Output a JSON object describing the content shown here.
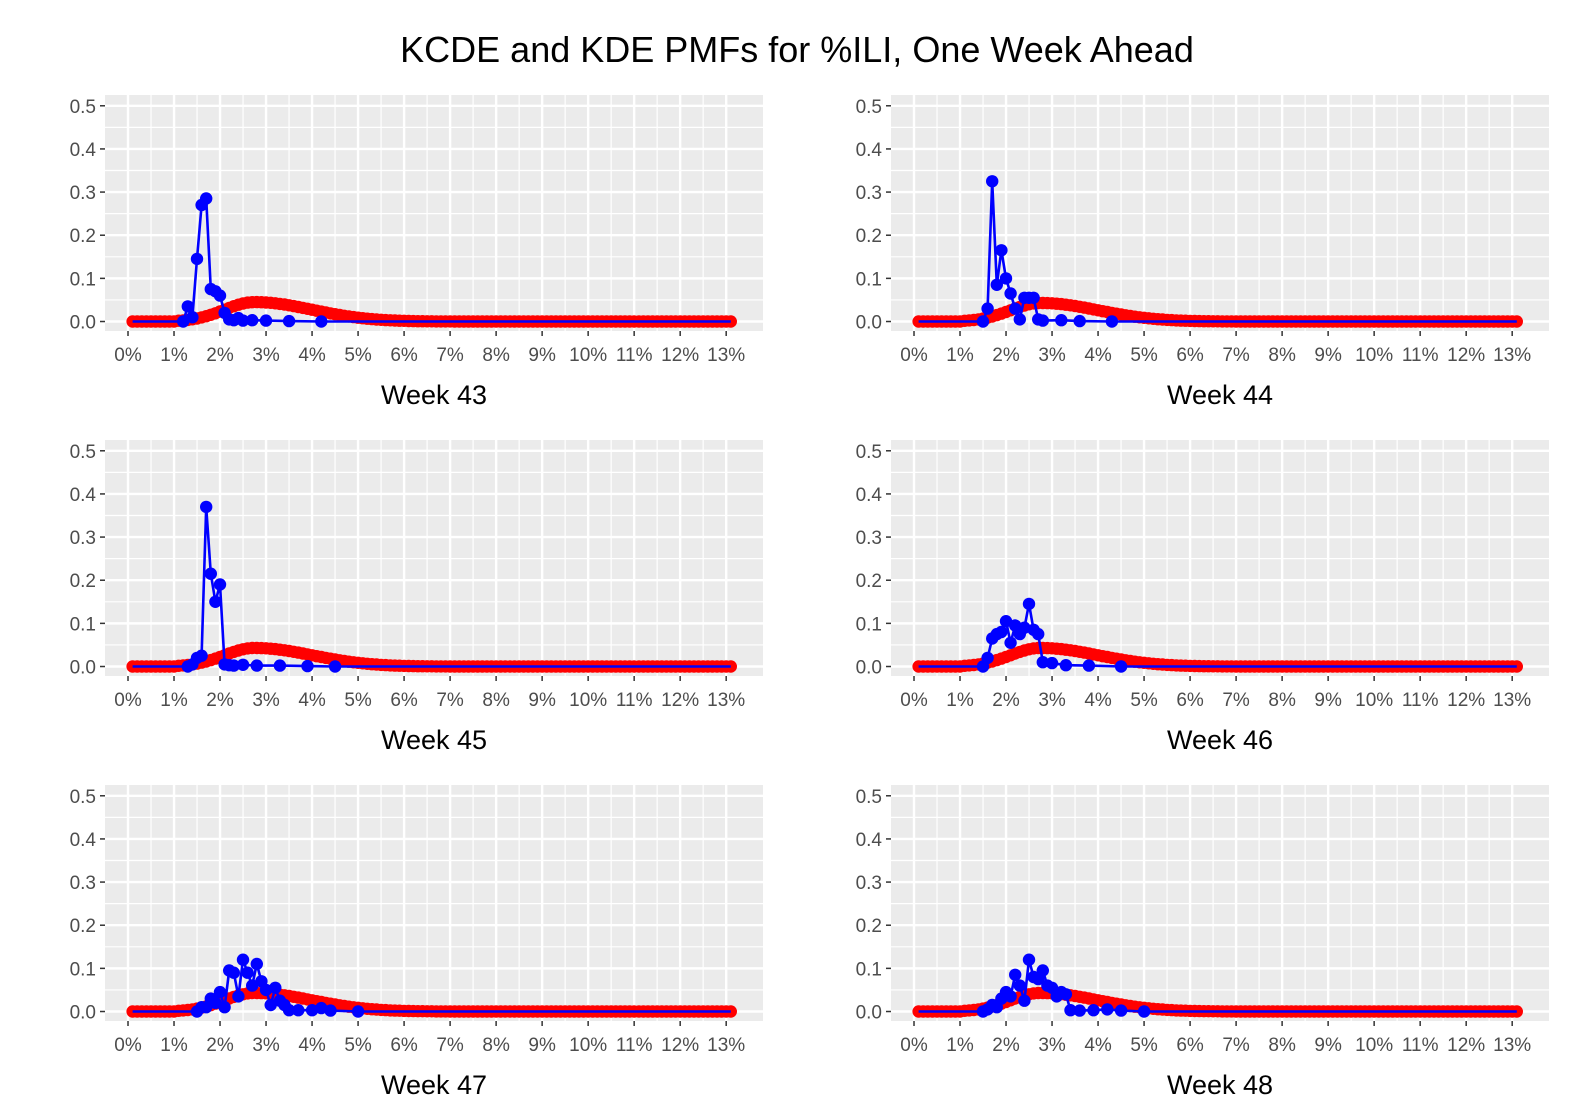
{
  "chart_data": {
    "type": "line",
    "title": "KCDE and KDE PMFs for %ILI, One Week Ahead",
    "colors": {
      "kcde": "#0000ff",
      "kde": "#ff0000",
      "panel_bg": "#ebebeb",
      "grid": "#ffffff"
    },
    "x_ticks": [
      "0%",
      "1%",
      "2%",
      "3%",
      "4%",
      "5%",
      "6%",
      "7%",
      "8%",
      "9%",
      "10%",
      "11%",
      "12%",
      "13%"
    ],
    "x_tick_values": [
      0,
      1,
      2,
      3,
      4,
      5,
      6,
      7,
      8,
      9,
      10,
      11,
      12,
      13
    ],
    "y_ticks": [
      "0.0",
      "0.1",
      "0.2",
      "0.3",
      "0.4",
      "0.5"
    ],
    "y_tick_values": [
      0,
      0.1,
      0.2,
      0.3,
      0.4,
      0.5
    ],
    "xlim": [
      -0.5,
      13.8
    ],
    "ylim": [
      -0.022,
      0.525
    ],
    "kde_grid": {
      "start": 0.1,
      "end": 13.1,
      "step": 0.1
    },
    "kde_shape": {
      "peak_x": 2.75,
      "sigma_left": 0.65,
      "sigma_right": 1.25,
      "onset": 1.0
    },
    "panels": [
      {
        "xlabel": "Week 43",
        "kde_peak": 0.045,
        "kcde_points": [
          [
            0.1,
            0
          ],
          [
            1.2,
            0
          ],
          [
            1.3,
            0.035
          ],
          [
            1.4,
            0.01
          ],
          [
            1.5,
            0.145
          ],
          [
            1.6,
            0.27
          ],
          [
            1.7,
            0.285
          ],
          [
            1.8,
            0.075
          ],
          [
            1.9,
            0.07
          ],
          [
            2.0,
            0.06
          ],
          [
            2.1,
            0.02
          ],
          [
            2.2,
            0.005
          ],
          [
            2.3,
            0.003
          ],
          [
            2.4,
            0.008
          ],
          [
            2.5,
            0.002
          ],
          [
            2.7,
            0.003
          ],
          [
            3.0,
            0.002
          ],
          [
            3.5,
            0.001
          ],
          [
            4.2,
            0
          ],
          [
            13.1,
            0
          ]
        ]
      },
      {
        "xlabel": "Week 44",
        "kde_peak": 0.043,
        "kcde_points": [
          [
            0.1,
            0
          ],
          [
            1.5,
            0
          ],
          [
            1.6,
            0.03
          ],
          [
            1.7,
            0.325
          ],
          [
            1.8,
            0.085
          ],
          [
            1.9,
            0.165
          ],
          [
            2.0,
            0.1
          ],
          [
            2.1,
            0.065
          ],
          [
            2.2,
            0.03
          ],
          [
            2.3,
            0.005
          ],
          [
            2.4,
            0.055
          ],
          [
            2.5,
            0.055
          ],
          [
            2.6,
            0.055
          ],
          [
            2.7,
            0.005
          ],
          [
            2.8,
            0.002
          ],
          [
            3.2,
            0.003
          ],
          [
            3.6,
            0.001
          ],
          [
            4.3,
            0
          ],
          [
            13.1,
            0
          ]
        ]
      },
      {
        "xlabel": "Week 45",
        "kde_peak": 0.043,
        "kcde_points": [
          [
            0.1,
            0
          ],
          [
            1.3,
            0
          ],
          [
            1.4,
            0.005
          ],
          [
            1.5,
            0.02
          ],
          [
            1.6,
            0.025
          ],
          [
            1.7,
            0.37
          ],
          [
            1.8,
            0.215
          ],
          [
            1.9,
            0.15
          ],
          [
            2.0,
            0.19
          ],
          [
            2.1,
            0.005
          ],
          [
            2.2,
            0.003
          ],
          [
            2.3,
            0.002
          ],
          [
            2.5,
            0.004
          ],
          [
            2.8,
            0.002
          ],
          [
            3.3,
            0.002
          ],
          [
            3.9,
            0.001
          ],
          [
            4.5,
            0
          ],
          [
            13.1,
            0
          ]
        ]
      },
      {
        "xlabel": "Week 46",
        "kde_peak": 0.043,
        "kcde_points": [
          [
            0.1,
            0
          ],
          [
            1.5,
            0
          ],
          [
            1.6,
            0.02
          ],
          [
            1.7,
            0.065
          ],
          [
            1.8,
            0.075
          ],
          [
            1.9,
            0.08
          ],
          [
            2.0,
            0.105
          ],
          [
            2.1,
            0.055
          ],
          [
            2.2,
            0.095
          ],
          [
            2.3,
            0.075
          ],
          [
            2.4,
            0.09
          ],
          [
            2.5,
            0.145
          ],
          [
            2.6,
            0.085
          ],
          [
            2.7,
            0.075
          ],
          [
            2.8,
            0.01
          ],
          [
            3.0,
            0.008
          ],
          [
            3.3,
            0.003
          ],
          [
            3.8,
            0.002
          ],
          [
            4.5,
            0
          ],
          [
            13.1,
            0
          ]
        ]
      },
      {
        "xlabel": "Week 47",
        "kde_peak": 0.043,
        "kcde_points": [
          [
            0.1,
            0
          ],
          [
            1.5,
            0
          ],
          [
            1.6,
            0.01
          ],
          [
            1.7,
            0.01
          ],
          [
            1.8,
            0.03
          ],
          [
            1.9,
            0.02
          ],
          [
            2.0,
            0.045
          ],
          [
            2.1,
            0.01
          ],
          [
            2.2,
            0.095
          ],
          [
            2.3,
            0.09
          ],
          [
            2.4,
            0.035
          ],
          [
            2.5,
            0.12
          ],
          [
            2.6,
            0.09
          ],
          [
            2.7,
            0.06
          ],
          [
            2.8,
            0.11
          ],
          [
            2.9,
            0.07
          ],
          [
            3.0,
            0.05
          ],
          [
            3.1,
            0.015
          ],
          [
            3.2,
            0.055
          ],
          [
            3.3,
            0.025
          ],
          [
            3.4,
            0.015
          ],
          [
            3.5,
            0.003
          ],
          [
            3.7,
            0.003
          ],
          [
            4.0,
            0.003
          ],
          [
            4.2,
            0.008
          ],
          [
            4.4,
            0.002
          ],
          [
            5.0,
            0
          ],
          [
            13.1,
            0
          ]
        ]
      },
      {
        "xlabel": "Week 48",
        "kde_peak": 0.043,
        "kcde_points": [
          [
            0.1,
            0
          ],
          [
            1.5,
            0
          ],
          [
            1.6,
            0.005
          ],
          [
            1.7,
            0.015
          ],
          [
            1.8,
            0.01
          ],
          [
            1.9,
            0.03
          ],
          [
            2.0,
            0.045
          ],
          [
            2.1,
            0.035
          ],
          [
            2.2,
            0.085
          ],
          [
            2.3,
            0.06
          ],
          [
            2.4,
            0.025
          ],
          [
            2.5,
            0.12
          ],
          [
            2.6,
            0.08
          ],
          [
            2.7,
            0.075
          ],
          [
            2.8,
            0.095
          ],
          [
            2.9,
            0.06
          ],
          [
            3.0,
            0.055
          ],
          [
            3.1,
            0.035
          ],
          [
            3.2,
            0.045
          ],
          [
            3.3,
            0.04
          ],
          [
            3.4,
            0.003
          ],
          [
            3.6,
            0.002
          ],
          [
            3.9,
            0.003
          ],
          [
            4.2,
            0.005
          ],
          [
            4.5,
            0.002
          ],
          [
            5.0,
            0
          ],
          [
            13.1,
            0
          ]
        ]
      }
    ]
  }
}
